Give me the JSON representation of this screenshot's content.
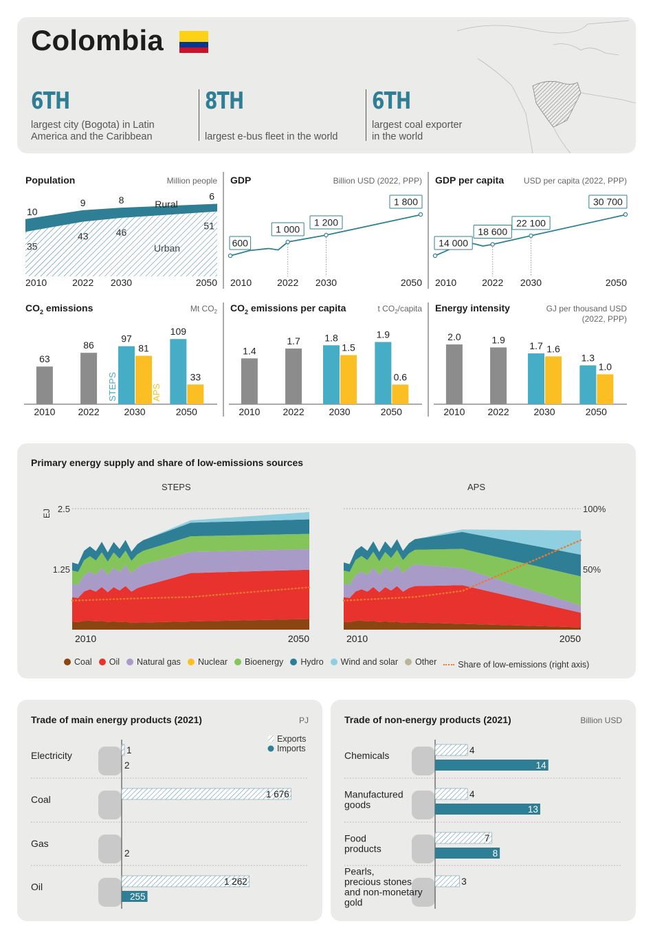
{
  "header": {
    "country": "Colombia",
    "facts": [
      {
        "rank": "6TH",
        "text_1": "largest city (Bogota) in Latin",
        "text_2": "America and the Caribbean"
      },
      {
        "rank": "8TH",
        "text_1": "",
        "text_2": "largest e-bus fleet in the world"
      },
      {
        "rank": "6TH",
        "text_1": "largest coal exporter",
        "text_2": "in the world"
      }
    ],
    "colors": {
      "teal": "#2e7f96",
      "flag_yellow": "#fcd116",
      "flag_blue": "#003893",
      "flag_red": "#ce1126"
    }
  },
  "chart_data": [
    {
      "id": "population",
      "type": "area",
      "title": "Population",
      "unit": "Million people",
      "x": [
        "2010",
        "2022",
        "2030",
        "2050"
      ],
      "series": [
        {
          "name": "Rural",
          "values": [
            10,
            9,
            8,
            6
          ],
          "labels": [
            "10",
            "9",
            "8",
            "6"
          ]
        },
        {
          "name": "Urban",
          "values": [
            35,
            43,
            46,
            51
          ],
          "labels": [
            "35",
            "43",
            "46",
            "51"
          ]
        }
      ],
      "rural_label": "Rural",
      "urban_label": "Urban"
    },
    {
      "id": "gdp",
      "type": "line",
      "title": "GDP",
      "unit": "Billion USD (2022, PPP)",
      "x": [
        "2010",
        "2022",
        "2030",
        "2050"
      ],
      "values": [
        600,
        1000,
        1200,
        1800
      ],
      "labels": [
        "600",
        "1 000",
        "1 200",
        "1 800"
      ]
    },
    {
      "id": "gdp_per_capita",
      "type": "line",
      "title": "GDP per capita",
      "unit": "USD per capita (2022, PPP)",
      "x": [
        "2010",
        "2022",
        "2030",
        "2050"
      ],
      "values": [
        14000,
        18600,
        22100,
        30700
      ],
      "labels": [
        "14 000",
        "18 600",
        "22 100",
        "30 700"
      ]
    },
    {
      "id": "co2",
      "type": "bar",
      "title_main": "CO",
      "title_sub": "2",
      "title_rest": " emissions",
      "unit_main": "Mt CO",
      "unit_sub": "2",
      "unit_rest": "",
      "categories": [
        "2010",
        "2022",
        "2030",
        "2050"
      ],
      "historic": [
        63,
        86
      ],
      "historic_labels": [
        "63",
        "86"
      ],
      "steps": [
        97,
        109
      ],
      "steps_labels": [
        "97",
        "109"
      ],
      "aps": [
        81,
        33
      ],
      "aps_labels": [
        "81",
        "33"
      ],
      "max": 115,
      "steps_name": "STEPS",
      "aps_name": "APS"
    },
    {
      "id": "co2_per_capita",
      "type": "bar",
      "title_main": "CO",
      "title_sub": "2",
      "title_rest": " emissions per capita",
      "unit_main": "t CO",
      "unit_sub": "2",
      "unit_rest": "/capita",
      "categories": [
        "2010",
        "2022",
        "2030",
        "2050"
      ],
      "historic": [
        1.4,
        1.7
      ],
      "historic_labels": [
        "1.4",
        "1.7"
      ],
      "steps": [
        1.8,
        1.9
      ],
      "steps_labels": [
        "1.8",
        "1.9"
      ],
      "aps": [
        1.5,
        0.6
      ],
      "aps_labels": [
        "1.5",
        "0.6"
      ],
      "max": 2.1
    },
    {
      "id": "energy_intensity",
      "type": "bar",
      "title_main": "Energy intensity",
      "title_sub": "",
      "title_rest": "",
      "unit_main": "GJ per thousand USD",
      "unit_sub": "",
      "unit_rest": "",
      "unit_line2": "(2022, PPP)",
      "categories": [
        "2010",
        "2022",
        "2030",
        "2050"
      ],
      "historic": [
        2.0,
        1.9
      ],
      "historic_labels": [
        "2.0",
        "1.9"
      ],
      "steps": [
        1.7,
        1.3
      ],
      "steps_labels": [
        "1.7",
        "1.3"
      ],
      "aps": [
        1.6,
        1.0
      ],
      "aps_labels": [
        "1.6",
        "1.0"
      ],
      "max": 2.3
    },
    {
      "id": "primary_energy",
      "type": "area",
      "title": "Primary energy supply and share of low-emissions sources",
      "panels": [
        "STEPS",
        "APS"
      ],
      "ylabel": "EJ",
      "ylim": [
        0,
        2.5
      ],
      "yticks": [
        "2.5",
        "1.25"
      ],
      "y2ticks": [
        "100%",
        "50%"
      ],
      "xticks": [
        "2010",
        "2050"
      ],
      "legend": [
        "Coal",
        "Oil",
        "Natural gas",
        "Nuclear",
        "Bioenergy",
        "Hydro",
        "Wind and solar",
        "Other",
        "Share of low-emissions (right axis)"
      ],
      "legend_colors": [
        "#8b4513",
        "#e8322d",
        "#a99bc8",
        "#fbbf24",
        "#84c45a",
        "#2e7f96",
        "#8fcfdf",
        "#b9b49a",
        "#f07a2a"
      ],
      "steps_years": [
        2010,
        2022,
        2030,
        2050
      ],
      "steps": {
        "coal": [
          0.18,
          0.15,
          0.17,
          0.22
        ],
        "oil": [
          0.55,
          0.75,
          1.0,
          1.02
        ],
        "gas": [
          0.3,
          0.45,
          0.44,
          0.42
        ],
        "bio": [
          0.3,
          0.28,
          0.32,
          0.32
        ],
        "hydro": [
          0.18,
          0.22,
          0.28,
          0.3
        ],
        "wind_solar": [
          0.0,
          0.0,
          0.05,
          0.15
        ],
        "share_low": [
          0.24,
          0.26,
          0.27,
          0.35
        ]
      },
      "aps_years": [
        2010,
        2022,
        2030,
        2050
      ],
      "aps": {
        "coal": [
          0.18,
          0.15,
          0.12,
          0.05
        ],
        "oil": [
          0.55,
          0.75,
          0.8,
          0.3
        ],
        "gas": [
          0.3,
          0.45,
          0.35,
          0.15
        ],
        "bio": [
          0.3,
          0.3,
          0.4,
          0.6
        ],
        "hydro": [
          0.18,
          0.22,
          0.35,
          0.45
        ],
        "wind_solar": [
          0.0,
          0.0,
          0.05,
          0.5
        ],
        "share_low": [
          0.24,
          0.27,
          0.32,
          0.74
        ]
      }
    },
    {
      "id": "trade_energy",
      "type": "bar",
      "title": "Trade of main energy products (2021)",
      "unit": "PJ",
      "legend_exports": "Exports",
      "legend_imports": "Imports",
      "categories": [
        "Electricity",
        "Coal",
        "Gas",
        "Oil"
      ],
      "exports": [
        1,
        1676,
        0,
        1262
      ],
      "exports_labels": [
        "1",
        "1 676",
        "",
        "1 262"
      ],
      "imports": [
        2,
        0,
        2,
        255
      ],
      "imports_labels": [
        "2",
        "",
        "2",
        "255"
      ],
      "max": 1800
    },
    {
      "id": "trade_non_energy",
      "type": "bar",
      "title": "Trade of non-energy products (2021)",
      "unit": "Billion USD",
      "categories": [
        "Chemicals",
        "Manufactured goods",
        "Food products",
        "Pearls, precious stones and non-monetary gold"
      ],
      "category_lines": [
        [
          "Chemicals"
        ],
        [
          "Manufactured",
          "goods"
        ],
        [
          "Food",
          "products"
        ],
        [
          "Pearls,",
          "precious stones",
          "and non-monetary",
          "gold"
        ]
      ],
      "exports": [
        4,
        4,
        7,
        3
      ],
      "exports_labels": [
        "4",
        "4",
        "7",
        "3"
      ],
      "imports": [
        14,
        13,
        8,
        0
      ],
      "imports_labels": [
        "14",
        "13",
        "8",
        ""
      ],
      "max": 17
    }
  ]
}
